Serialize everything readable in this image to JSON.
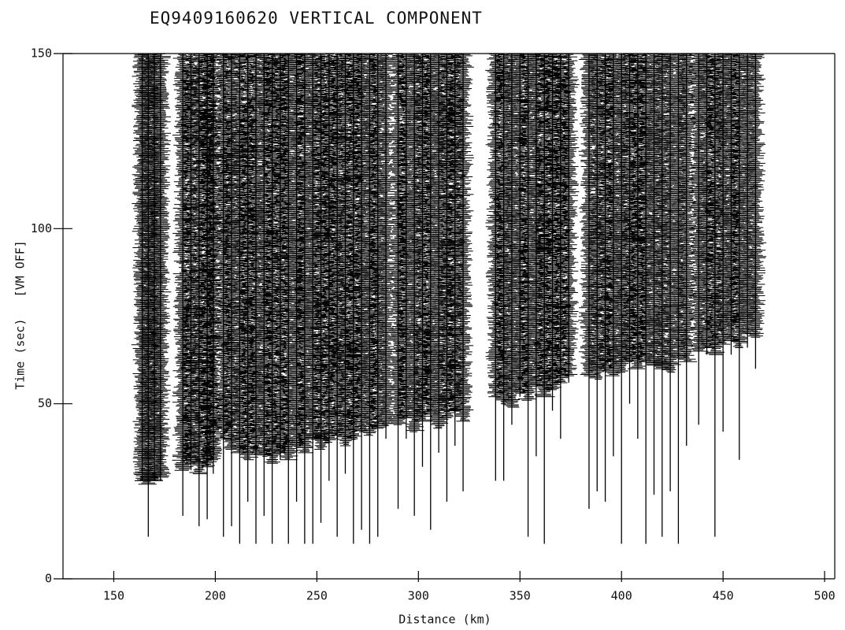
{
  "chart_data": {
    "type": "record-section",
    "title": "EQ9409160620 VERTICAL COMPONENT",
    "x_label": "Distance (km)",
    "y_label": "Time (sec)   [VM OFF]",
    "color": "#000000",
    "xlim": [
      125,
      505
    ],
    "ylim": [
      0,
      150
    ],
    "xticks": [
      150,
      200,
      250,
      300,
      350,
      400,
      450,
      500
    ],
    "yticks": [
      0,
      50,
      100,
      150
    ],
    "x": [
      164,
      167,
      170,
      173,
      184,
      188,
      192,
      196,
      199,
      204,
      208,
      212,
      216,
      220,
      224,
      228,
      232,
      236,
      240,
      244,
      248,
      252,
      256,
      260,
      264,
      268,
      272,
      276,
      280,
      284,
      290,
      294,
      298,
      302,
      306,
      310,
      314,
      318,
      322,
      338,
      342,
      346,
      350,
      354,
      358,
      362,
      366,
      370,
      374,
      384,
      388,
      392,
      396,
      400,
      404,
      408,
      412,
      416,
      420,
      424,
      428,
      432,
      438,
      442,
      446,
      450,
      454,
      458,
      462,
      466
    ],
    "coda_end": [
      28,
      27,
      28,
      29,
      31,
      33,
      30,
      32,
      34,
      40,
      37,
      36,
      34,
      36,
      35,
      33,
      36,
      34,
      38,
      36,
      40,
      37,
      39,
      41,
      38,
      40,
      42,
      41,
      43,
      44,
      44,
      46,
      42,
      45,
      47,
      43,
      46,
      48,
      45,
      52,
      50,
      49,
      53,
      51,
      55,
      52,
      54,
      56,
      58,
      58,
      57,
      60,
      58,
      59,
      62,
      60,
      62,
      61,
      60,
      59,
      63,
      62,
      65,
      66,
      64,
      67,
      68,
      66,
      70,
      69
    ],
    "trace_end": [
      28,
      12,
      28,
      28,
      18,
      31,
      15,
      17,
      30,
      12,
      15,
      10,
      22,
      10,
      18,
      10,
      34,
      10,
      22,
      10,
      10,
      16,
      28,
      12,
      30,
      10,
      14,
      10,
      12,
      40,
      20,
      40,
      18,
      32,
      14,
      36,
      22,
      38,
      25,
      28,
      28,
      44,
      52,
      12,
      35,
      10,
      48,
      40,
      56,
      20,
      25,
      22,
      35,
      10,
      50,
      40,
      10,
      24,
      12,
      25,
      10,
      38,
      44,
      64,
      12,
      42,
      64,
      34,
      66,
      60
    ]
  }
}
